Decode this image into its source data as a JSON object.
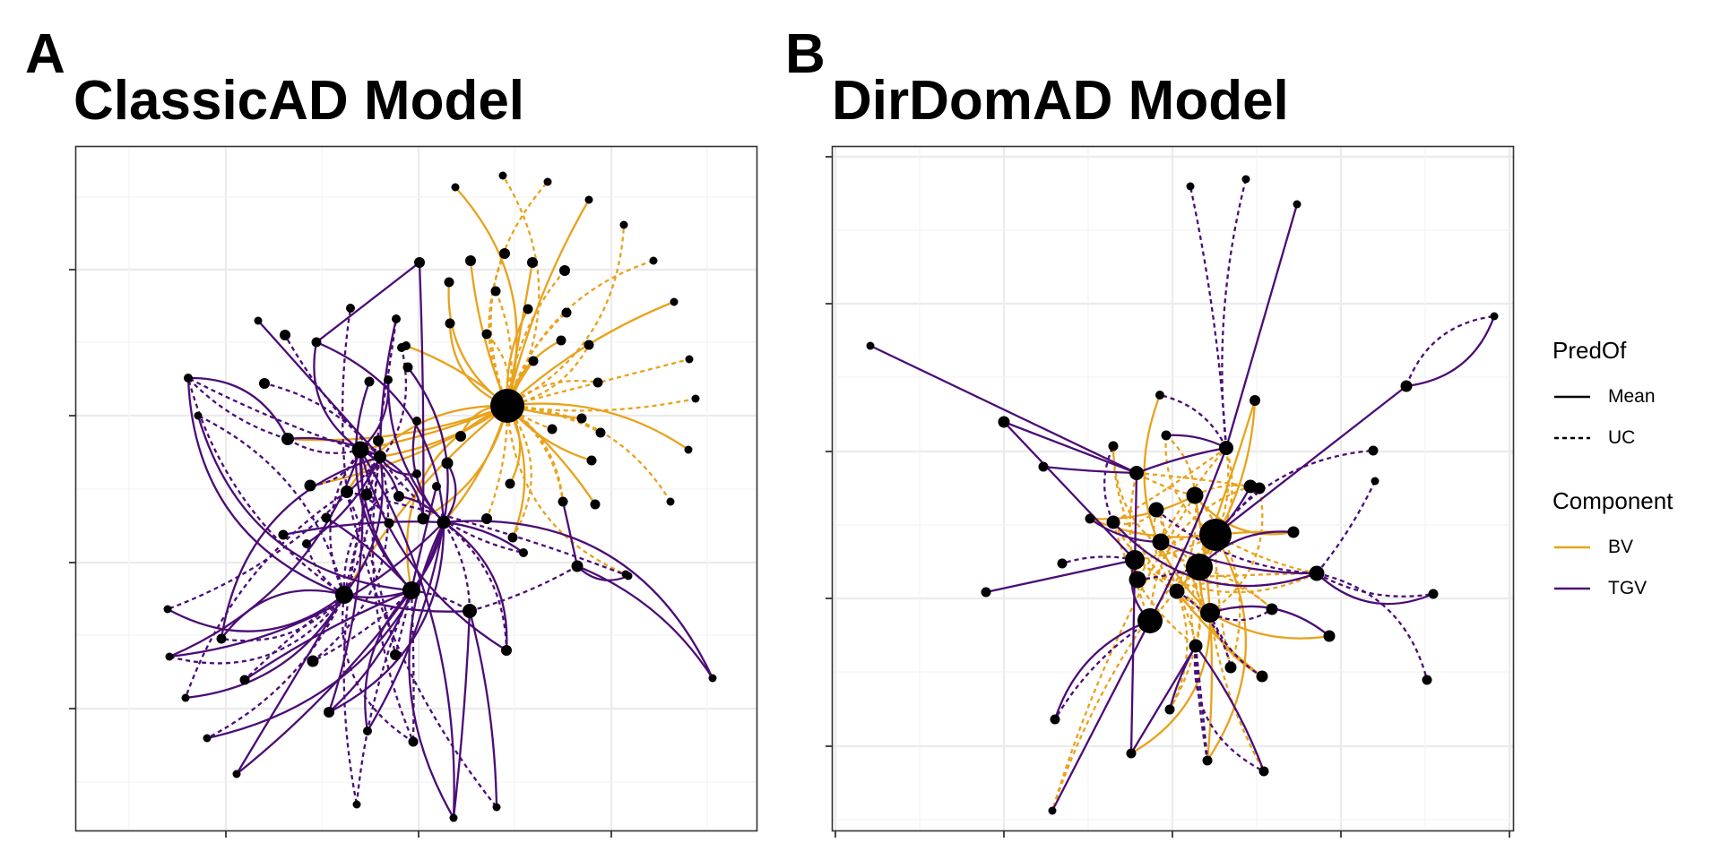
{
  "panels": [
    {
      "letter": "A",
      "title": "ClassicAD Model"
    },
    {
      "letter": "B",
      "title": "DirDomAD Model"
    }
  ],
  "legend": {
    "predof_title": "PredOf",
    "predof_items": [
      {
        "label": "Mean",
        "dash": "solid"
      },
      {
        "label": "UC",
        "dash": "dashed"
      }
    ],
    "component_title": "Component",
    "component_items": [
      {
        "label": "BV",
        "color": "#E8A21C"
      },
      {
        "label": "TGV",
        "color": "#4B0C76"
      }
    ]
  },
  "colors": {
    "BV": "#E8A21C",
    "TGV": "#4B0C76",
    "node": "#000000",
    "grid": "#EBEBEB",
    "frame": "#333333"
  }
}
